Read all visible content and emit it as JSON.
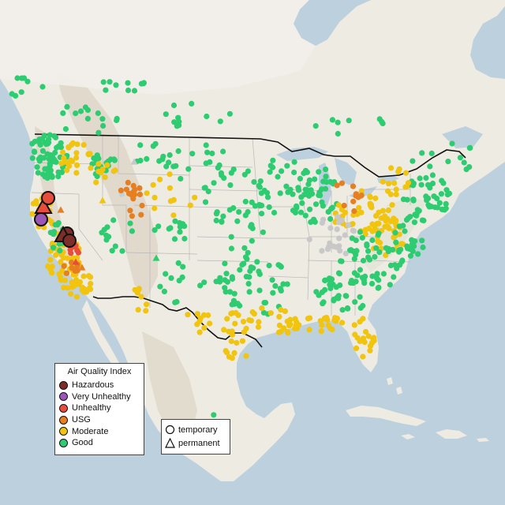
{
  "map": {
    "colors": {
      "ocean": "#bcd0de",
      "land": "#eeebe3",
      "land_north": "#f2f0ea",
      "mountain": "#ddd6c6",
      "forest": "#e3e6d8",
      "lake": "#bcd0de",
      "border": "#111111",
      "state_line": "#b8b8b8",
      "no_data": "#c8c8c8"
    }
  },
  "aqi_legend": {
    "title": "Air Quality Index",
    "categories": [
      {
        "label": "Hazardous",
        "color": "#7e2e28"
      },
      {
        "label": "Very Unhealthy",
        "color": "#9b56b6"
      },
      {
        "label": "Unhealthy",
        "color": "#e74c3c"
      },
      {
        "label": "USG",
        "color": "#e67e22"
      },
      {
        "label": "Moderate",
        "color": "#f1c40f"
      },
      {
        "label": "Good",
        "color": "#2ecc71"
      }
    ]
  },
  "monitor_legend": {
    "temporary": "temporary",
    "permanent": "permanent"
  }
}
